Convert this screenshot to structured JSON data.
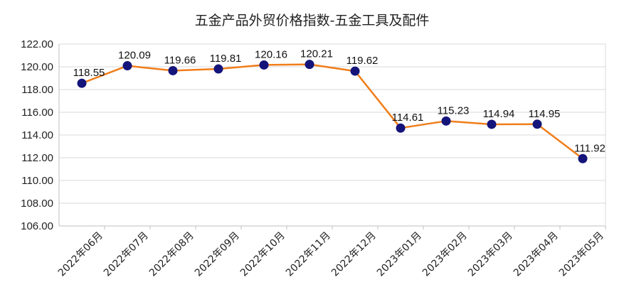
{
  "chart_data": {
    "type": "line",
    "title": "五金产品外贸价格指数-五金工具及配件",
    "categories": [
      "2022年06月",
      "2022年07月",
      "2022年08月",
      "2022年09月",
      "2022年10月",
      "2022年11月",
      "2022年12月",
      "2023年01月",
      "2023年02月",
      "2023年03月",
      "2023年04月",
      "2023年05月"
    ],
    "series": [
      {
        "values": [
          118.55,
          120.09,
          119.66,
          119.81,
          120.16,
          120.21,
          119.62,
          114.61,
          115.23,
          114.94,
          114.95,
          111.92
        ]
      }
    ],
    "value_labels": [
      "118.55",
      "120.09",
      "119.66",
      "119.81",
      "120.16",
      "120.21",
      "119.62",
      "114.61",
      "115.23",
      "114.94",
      "114.95",
      "111.92"
    ],
    "yticks": [
      "106.00",
      "108.00",
      "110.00",
      "112.00",
      "114.00",
      "116.00",
      "118.00",
      "120.00",
      "122.00"
    ],
    "ylim": [
      106,
      122
    ],
    "xlabel": "",
    "ylabel": "",
    "grid": true,
    "legend": "none",
    "colors": {
      "line": "#F07D1A",
      "marker": "#14147A",
      "grid": "#D9D9D9",
      "axis": "#BFBFBF"
    }
  }
}
